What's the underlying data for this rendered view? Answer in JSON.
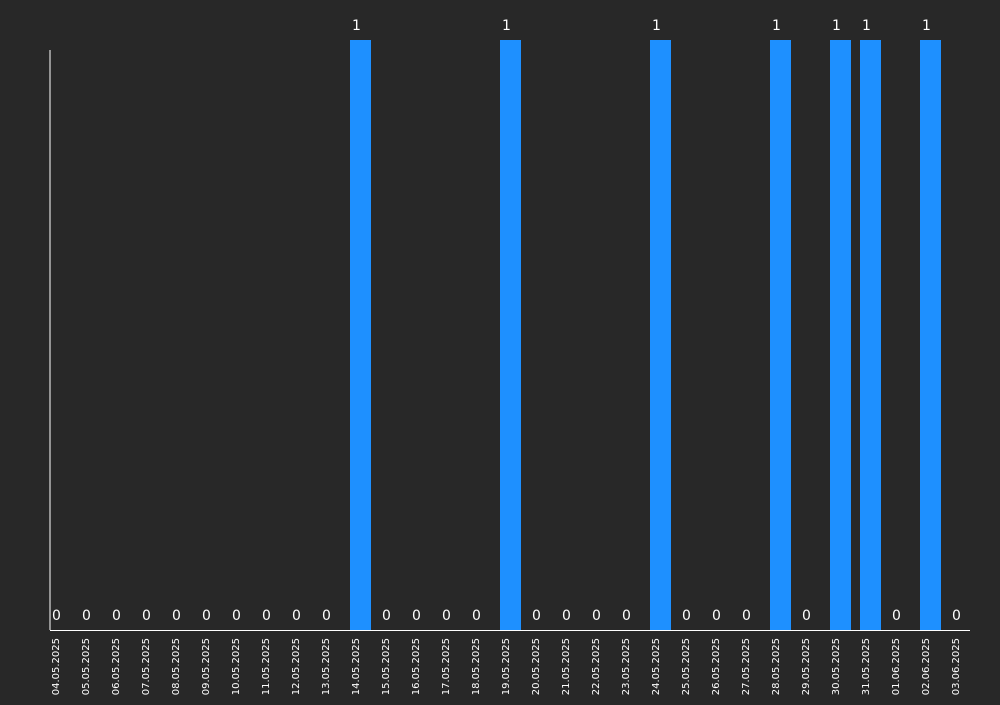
{
  "chart_data": {
    "type": "bar",
    "title": "",
    "xlabel": "",
    "ylabel": "",
    "categories": [
      "04.05.2025",
      "05.05.2025",
      "06.05.2025",
      "07.05.2025",
      "08.05.2025",
      "09.05.2025",
      "10.05.2025",
      "11.05.2025",
      "12.05.2025",
      "13.05.2025",
      "14.05.2025",
      "15.05.2025",
      "16.05.2025",
      "17.05.2025",
      "18.05.2025",
      "19.05.2025",
      "20.05.2025",
      "21.05.2025",
      "22.05.2025",
      "23.05.2025",
      "24.05.2025",
      "25.05.2025",
      "26.05.2025",
      "27.05.2025",
      "28.05.2025",
      "29.05.2025",
      "30.05.2025",
      "31.05.2025",
      "01.06.2025",
      "02.06.2025",
      "03.06.2025"
    ],
    "values": [
      0,
      0,
      0,
      0,
      0,
      0,
      0,
      0,
      0,
      0,
      1,
      0,
      0,
      0,
      0,
      1,
      0,
      0,
      0,
      0,
      1,
      0,
      0,
      0,
      1,
      0,
      1,
      1,
      0,
      1,
      0
    ],
    "ylim": [
      0,
      1
    ],
    "grid": false,
    "legend": "none",
    "colors": {
      "background": "#282828",
      "bar": "#1e90ff",
      "axis": "#ffffff",
      "text": "#ffffff"
    }
  }
}
